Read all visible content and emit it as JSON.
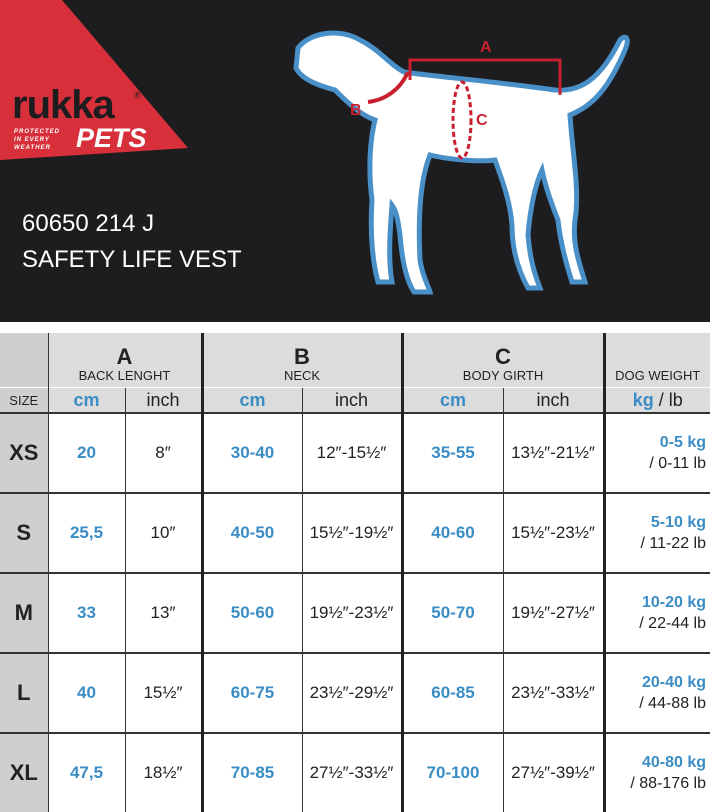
{
  "brand": {
    "name": "rukka",
    "sub": "PETS",
    "tagline": "PROTECTED IN EVERY WEATHER",
    "registered": "®",
    "accent": "#d7303b"
  },
  "product": {
    "code": "60650 214 J",
    "name": "SAFETY LIFE VEST"
  },
  "diagram": {
    "labels": [
      "A",
      "B",
      "C"
    ],
    "line_color": "#c8202e",
    "outline_color": "#4a90c8"
  },
  "table": {
    "size_header": "SIZE",
    "groups": [
      {
        "letter": "A",
        "label": "BACK LENGHT"
      },
      {
        "letter": "B",
        "label": "NECK"
      },
      {
        "letter": "C",
        "label": "BODY GIRTH"
      },
      {
        "label": "DOG WEIGHT"
      }
    ],
    "units": {
      "cm": "cm",
      "inch": "inch",
      "kg": "kg",
      "lb": " / lb"
    },
    "rows": [
      {
        "size": "XS",
        "a_cm": "20",
        "a_in": "8″",
        "b_cm": "30-40",
        "b_in": "12″-15½″",
        "c_cm": "35-55",
        "c_in": "13½″-21½″",
        "kg": "0-5 kg",
        "lb": "/ 0-11 lb"
      },
      {
        "size": "S",
        "a_cm": "25,5",
        "a_in": "10″",
        "b_cm": "40-50",
        "b_in": "15½″-19½″",
        "c_cm": "40-60",
        "c_in": "15½″-23½″",
        "kg": "5-10 kg",
        "lb": "/ 11-22 lb"
      },
      {
        "size": "M",
        "a_cm": "33",
        "a_in": "13″",
        "b_cm": "50-60",
        "b_in": "19½″-23½″",
        "c_cm": "50-70",
        "c_in": "19½″-27½″",
        "kg": "10-20 kg",
        "lb": "/ 22-44 lb"
      },
      {
        "size": "L",
        "a_cm": "40",
        "a_in": "15½″",
        "b_cm": "60-75",
        "b_in": "23½″-29½″",
        "c_cm": "60-85",
        "c_in": "23½″-33½″",
        "kg": "20-40 kg",
        "lb": "/ 44-88 lb"
      },
      {
        "size": "XL",
        "a_cm": "47,5",
        "a_in": "18½″",
        "b_cm": "70-85",
        "b_in": "27½″-33½″",
        "c_cm": "70-100",
        "c_in": "27½″-39½″",
        "kg": "40-80 kg",
        "lb": "/ 88-176 lb"
      }
    ]
  }
}
